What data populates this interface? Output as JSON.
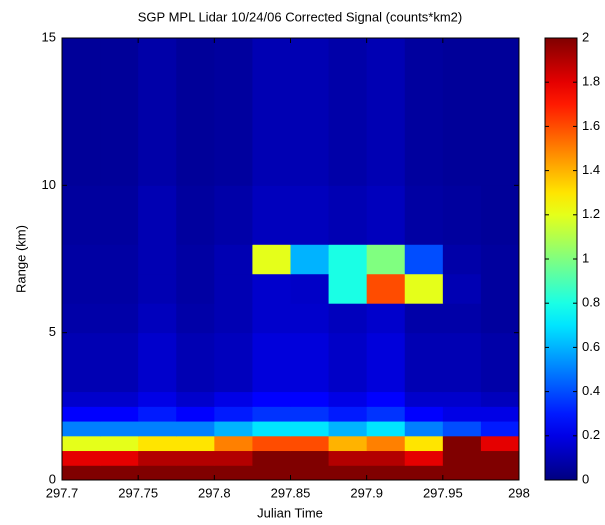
{
  "chart_data": {
    "type": "heatmap",
    "title": "SGP MPL Lidar 10/24/06 Corrected Signal (counts*km2)",
    "x_label": "Julian Time",
    "y_label": "Range (km)",
    "colormap": "jet",
    "x_edges": [
      297.7,
      297.725,
      297.75,
      297.775,
      297.8,
      297.825,
      297.85,
      297.875,
      297.9,
      297.925,
      297.95,
      297.975,
      298
    ],
    "y_edges": [
      0,
      0.5,
      1,
      1.5,
      2,
      2.5,
      3,
      5,
      6,
      7,
      8,
      10,
      15
    ],
    "values": [
      [
        2,
        2,
        2,
        2,
        2,
        2,
        2,
        2,
        2,
        2,
        2,
        2
      ],
      [
        1.8,
        1.8,
        1.9,
        1.9,
        1.9,
        2,
        2,
        1.9,
        1.9,
        1.8,
        2,
        2
      ],
      [
        1.2,
        1.2,
        1.3,
        1.3,
        1.5,
        1.6,
        1.6,
        1.4,
        1.5,
        1.3,
        2,
        1.8
      ],
      [
        0.5,
        0.5,
        0.5,
        0.5,
        0.6,
        0.7,
        0.7,
        0.6,
        0.7,
        0.5,
        0.4,
        0.3
      ],
      [
        0.25,
        0.25,
        0.3,
        0.25,
        0.3,
        0.35,
        0.35,
        0.3,
        0.35,
        0.25,
        0.2,
        0.2
      ],
      [
        0.15,
        0.15,
        0.2,
        0.15,
        0.2,
        0.25,
        0.25,
        0.2,
        0.25,
        0.15,
        0.15,
        0.12
      ],
      [
        0.1,
        0.1,
        0.15,
        0.1,
        0.12,
        0.18,
        0.18,
        0.14,
        0.18,
        0.1,
        0.1,
        0.08
      ],
      [
        0.08,
        0.08,
        0.12,
        0.08,
        0.1,
        0.15,
        0.15,
        0.12,
        0.15,
        0.08,
        0.08,
        0.06
      ],
      [
        0.07,
        0.07,
        0.1,
        0.07,
        0.1,
        0.15,
        0.14,
        0.8,
        1.6,
        1.2,
        0.1,
        0.06
      ],
      [
        0.07,
        0.07,
        0.1,
        0.07,
        0.1,
        1.2,
        0.6,
        0.8,
        1.0,
        0.4,
        0.08,
        0.06
      ],
      [
        0.06,
        0.06,
        0.1,
        0.06,
        0.08,
        0.12,
        0.12,
        0.1,
        0.12,
        0.07,
        0.06,
        0.05
      ],
      [
        0.05,
        0.05,
        0.08,
        0.05,
        0.06,
        0.1,
        0.1,
        0.08,
        0.1,
        0.06,
        0.05,
        0.05
      ]
    ],
    "xlim": [
      297.7,
      298
    ],
    "xticks": [
      297.7,
      297.75,
      297.8,
      297.85,
      297.9,
      297.95,
      298
    ],
    "ylim": [
      0,
      15
    ],
    "yticks": [
      0,
      5,
      10,
      15
    ],
    "zlim": [
      0,
      2
    ],
    "zticks": [
      0,
      0.2,
      0.4,
      0.6,
      0.8,
      1,
      1.2,
      1.4,
      1.6,
      1.8,
      2
    ]
  }
}
